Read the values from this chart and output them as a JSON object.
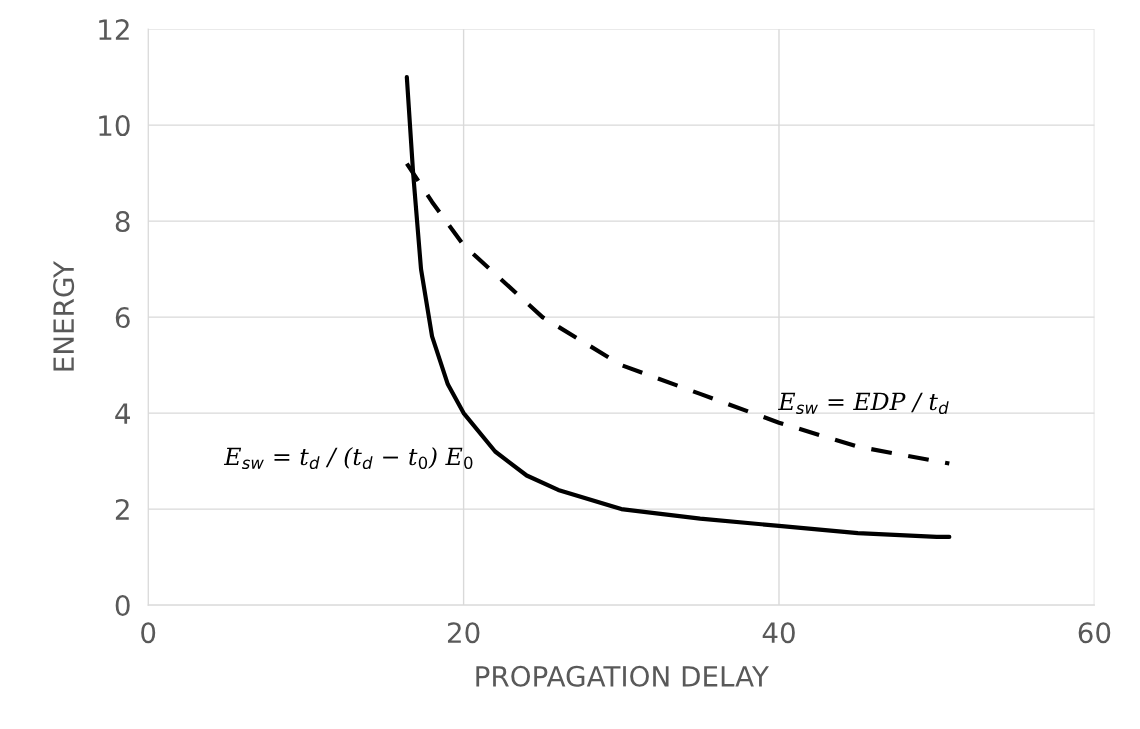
{
  "chart_data": {
    "type": "line",
    "xlabel": "PROPAGATION DELAY",
    "ylabel": "ENERGY",
    "xlim": [
      0,
      60
    ],
    "xticks": [
      0,
      20,
      40,
      60
    ],
    "ylim": [
      0,
      12
    ],
    "yticks": [
      0,
      2,
      4,
      6,
      8,
      10,
      12
    ],
    "grid": true,
    "series": [
      {
        "name": "E$_{sw}$ = t$_{d}$ / (t$_{d}$ − t$_{0}$) E$_{0}$",
        "color": "#000000",
        "line_style": "solid",
        "x": [
          16.4,
          16.8,
          17.3,
          18,
          19,
          20,
          22,
          24,
          26,
          30,
          35,
          40,
          45,
          50,
          50.8
        ],
        "values": [
          11,
          9,
          7,
          5.6,
          4.6,
          4.0,
          3.2,
          2.7,
          2.4,
          2.0,
          1.8,
          1.65,
          1.5,
          1.42,
          1.42
        ]
      },
      {
        "name": "E$_{sw}$ = EDP / t$_{d}$",
        "color": "#000000",
        "line_style": "dashed",
        "x": [
          16.4,
          18,
          20,
          25,
          30,
          35,
          40,
          45,
          50.8
        ],
        "values": [
          9.2,
          8.4,
          7.5,
          6.0,
          5.0,
          4.4,
          3.8,
          3.3,
          2.95
        ]
      }
    ]
  }
}
